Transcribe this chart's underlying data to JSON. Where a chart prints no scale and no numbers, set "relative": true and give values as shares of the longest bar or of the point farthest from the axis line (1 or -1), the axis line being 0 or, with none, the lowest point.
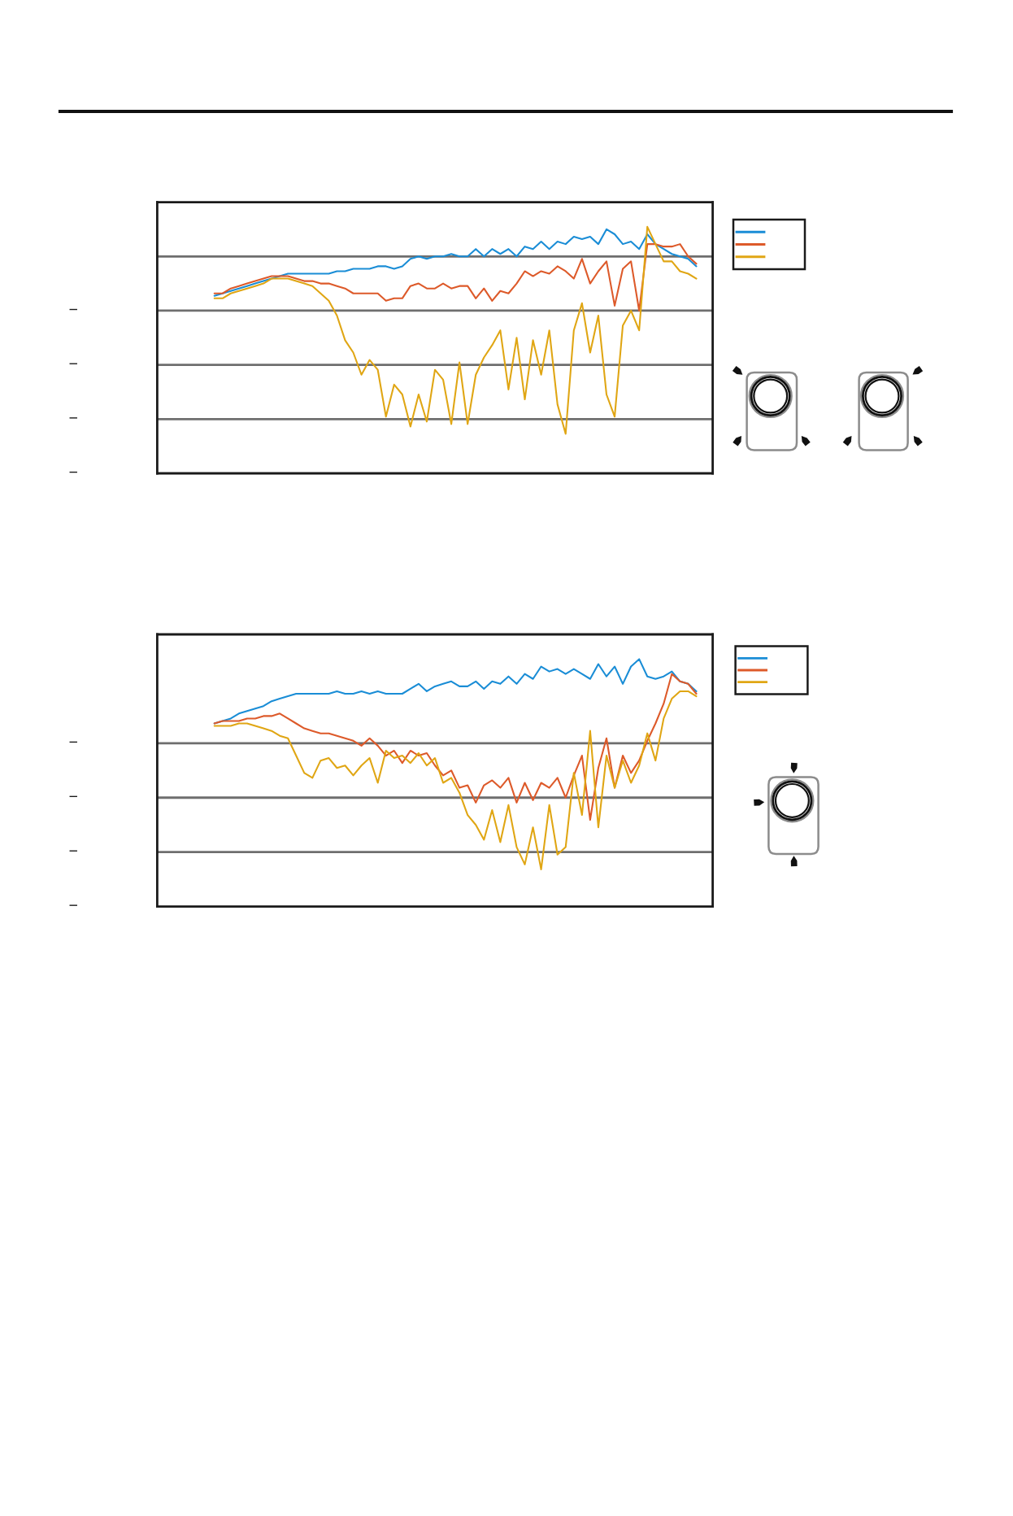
{
  "chart_data": [
    {
      "type": "line",
      "relative": true,
      "categories": [
        null,
        null,
        null,
        null,
        null,
        null,
        null,
        null,
        null,
        null,
        null,
        null,
        null,
        null,
        null,
        null,
        null,
        null,
        null,
        null,
        null,
        null,
        null,
        null,
        null,
        null,
        null,
        null,
        null,
        null,
        null,
        null,
        null,
        null,
        null,
        null,
        null,
        null,
        null,
        null,
        null,
        null,
        null,
        null,
        null,
        null,
        null,
        null,
        null,
        null,
        null,
        null,
        null,
        null,
        null,
        null,
        null,
        null,
        null,
        null,
        null,
        null,
        null,
        null,
        null,
        null,
        null,
        null,
        null
      ],
      "series": [
        {
          "color": "#1a8dd6",
          "values": [
            null,
            null,
            null,
            null,
            null,
            null,
            null,
            0.72,
            0.73,
            0.74,
            0.75,
            0.76,
            0.77,
            0.78,
            0.79,
            0.8,
            0.81,
            0.81,
            0.81,
            0.81,
            0.81,
            0.81,
            0.82,
            0.82,
            0.83,
            0.83,
            0.83,
            0.84,
            0.84,
            0.83,
            0.84,
            0.87,
            0.88,
            0.87,
            0.88,
            0.88,
            0.89,
            0.88,
            0.88,
            0.91,
            0.88,
            0.91,
            0.89,
            0.91,
            0.88,
            0.92,
            0.91,
            0.94,
            0.91,
            0.94,
            0.93,
            0.96,
            0.95,
            0.96,
            0.93,
            0.99,
            0.97,
            0.93,
            0.94,
            0.91,
            0.97,
            0.93,
            0.91,
            0.89,
            0.88,
            0.87,
            0.84,
            null,
            null
          ]
        },
        {
          "color": "#dd5a2a",
          "values": [
            null,
            null,
            null,
            null,
            null,
            null,
            null,
            0.73,
            0.73,
            0.75,
            0.76,
            0.77,
            0.78,
            0.79,
            0.8,
            0.8,
            0.8,
            0.79,
            0.78,
            0.78,
            0.77,
            0.77,
            0.76,
            0.75,
            0.73,
            0.73,
            0.73,
            0.73,
            0.7,
            0.71,
            0.71,
            0.76,
            0.77,
            0.75,
            0.75,
            0.77,
            0.75,
            0.76,
            0.76,
            0.71,
            0.75,
            0.7,
            0.74,
            0.73,
            0.77,
            0.82,
            0.8,
            0.82,
            0.81,
            0.84,
            0.82,
            0.79,
            0.87,
            0.77,
            0.82,
            0.86,
            0.68,
            0.83,
            0.86,
            0.66,
            0.93,
            0.93,
            0.92,
            0.92,
            0.93,
            0.88,
            0.85,
            null,
            null
          ]
        },
        {
          "color": "#e0a614",
          "values": [
            null,
            null,
            null,
            null,
            null,
            null,
            null,
            0.71,
            0.71,
            0.73,
            0.74,
            0.75,
            0.76,
            0.77,
            0.79,
            0.79,
            0.79,
            0.78,
            0.77,
            0.76,
            0.73,
            0.7,
            0.64,
            0.54,
            0.49,
            0.4,
            0.46,
            0.42,
            0.23,
            0.36,
            0.32,
            0.19,
            0.32,
            0.21,
            0.42,
            0.38,
            0.2,
            0.45,
            0.2,
            0.4,
            0.47,
            0.52,
            0.58,
            0.34,
            0.55,
            0.3,
            0.54,
            0.4,
            0.58,
            0.28,
            0.16,
            0.58,
            0.69,
            0.49,
            0.64,
            0.32,
            0.23,
            0.6,
            0.66,
            0.58,
            1.0,
            0.93,
            0.86,
            0.86,
            0.82,
            0.81,
            0.79,
            null,
            null
          ]
        }
      ],
      "ref_lines": [
        {
          "axis": "y",
          "value": 0.22,
          "color": "#6e6e6e"
        },
        {
          "axis": "y",
          "value": 0.44,
          "color": "#6e6e6e"
        },
        {
          "axis": "y",
          "value": 0.66,
          "color": "#6e6e6e"
        },
        {
          "axis": "y",
          "value": 0.88,
          "color": "#6e6e6e"
        }
      ],
      "annotations": [
        "−",
        "−",
        "−",
        "−"
      ]
    },
    {
      "type": "line",
      "relative": true,
      "categories": [
        null,
        null,
        null,
        null,
        null,
        null,
        null,
        null,
        null,
        null,
        null,
        null,
        null,
        null,
        null,
        null,
        null,
        null,
        null,
        null,
        null,
        null,
        null,
        null,
        null,
        null,
        null,
        null,
        null,
        null,
        null,
        null,
        null,
        null,
        null,
        null,
        null,
        null,
        null,
        null,
        null,
        null,
        null,
        null,
        null,
        null,
        null,
        null,
        null,
        null,
        null,
        null,
        null,
        null,
        null,
        null,
        null,
        null,
        null,
        null,
        null,
        null,
        null,
        null,
        null,
        null,
        null,
        null,
        null
      ],
      "series": [
        {
          "color": "#1a8dd6",
          "values": [
            null,
            null,
            null,
            null,
            null,
            null,
            null,
            0.74,
            0.75,
            0.76,
            0.78,
            0.79,
            0.8,
            0.81,
            0.83,
            0.84,
            0.85,
            0.86,
            0.86,
            0.86,
            0.86,
            0.86,
            0.87,
            0.86,
            0.86,
            0.87,
            0.86,
            0.87,
            0.86,
            0.86,
            0.86,
            0.88,
            0.9,
            0.87,
            0.89,
            0.9,
            0.91,
            0.89,
            0.89,
            0.91,
            0.88,
            0.91,
            0.9,
            0.93,
            0.9,
            0.94,
            0.92,
            0.97,
            0.95,
            0.96,
            0.94,
            0.96,
            0.94,
            0.92,
            0.98,
            0.93,
            0.97,
            0.9,
            0.97,
            1.0,
            0.93,
            0.92,
            0.93,
            0.95,
            0.91,
            0.9,
            0.87,
            null,
            null
          ]
        },
        {
          "color": "#dd5a2a",
          "values": [
            null,
            null,
            null,
            null,
            null,
            null,
            null,
            0.74,
            0.75,
            0.75,
            0.75,
            0.76,
            0.76,
            0.77,
            0.77,
            0.78,
            0.76,
            0.74,
            0.72,
            0.71,
            0.7,
            0.7,
            0.69,
            0.68,
            0.67,
            0.65,
            0.68,
            0.65,
            0.61,
            0.63,
            0.58,
            0.63,
            0.61,
            0.62,
            0.57,
            0.53,
            0.55,
            0.48,
            0.49,
            0.42,
            0.49,
            0.51,
            0.48,
            0.52,
            0.42,
            0.5,
            0.43,
            0.5,
            0.48,
            0.52,
            0.44,
            0.53,
            0.61,
            0.35,
            0.56,
            0.68,
            0.48,
            0.61,
            0.54,
            0.59,
            0.67,
            0.74,
            0.82,
            0.94,
            0.91,
            0.9,
            0.86,
            null,
            null
          ]
        },
        {
          "color": "#e0a614",
          "values": [
            null,
            null,
            null,
            null,
            null,
            null,
            null,
            0.73,
            0.73,
            0.73,
            0.74,
            0.74,
            0.73,
            0.72,
            0.71,
            0.69,
            0.68,
            0.61,
            0.54,
            0.52,
            0.59,
            0.6,
            0.56,
            0.57,
            0.53,
            0.57,
            0.6,
            0.5,
            0.63,
            0.6,
            0.61,
            0.58,
            0.62,
            0.57,
            0.6,
            0.5,
            0.52,
            0.46,
            0.37,
            0.33,
            0.27,
            0.39,
            0.26,
            0.41,
            0.24,
            0.17,
            0.32,
            0.15,
            0.41,
            0.21,
            0.24,
            0.54,
            0.37,
            0.71,
            0.32,
            0.61,
            0.48,
            0.59,
            0.5,
            0.57,
            0.7,
            0.59,
            0.76,
            0.84,
            0.87,
            0.87,
            0.85,
            null,
            null
          ]
        }
      ],
      "ref_lines": [
        {
          "axis": "y",
          "value": 0.22,
          "color": "#6e6e6e"
        },
        {
          "axis": "y",
          "value": 0.44,
          "color": "#6e6e6e"
        },
        {
          "axis": "y",
          "value": 0.66,
          "color": "#6e6e6e"
        }
      ],
      "annotations": [
        "−",
        "−",
        "−",
        "−"
      ]
    }
  ]
}
